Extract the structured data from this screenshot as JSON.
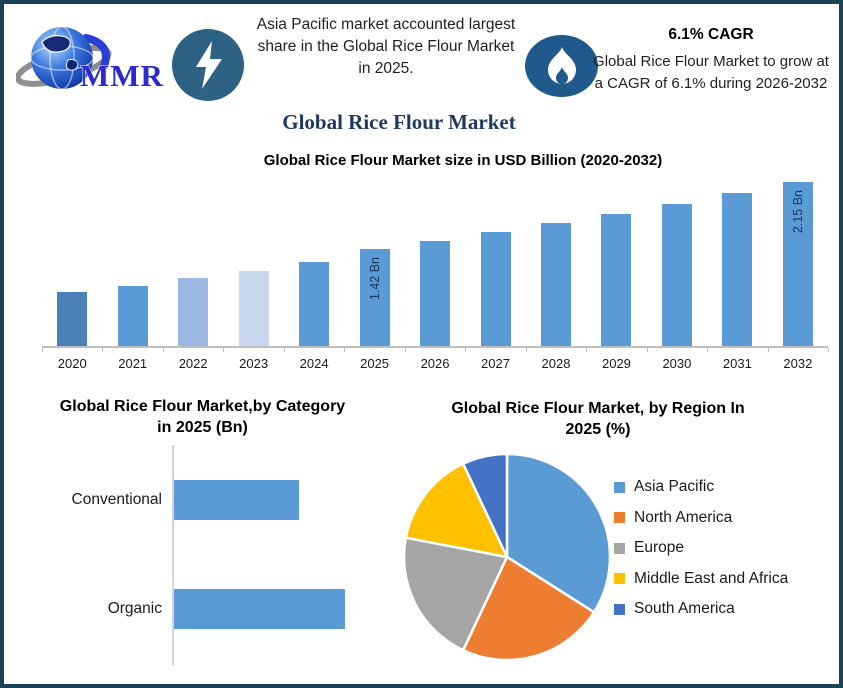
{
  "header": {
    "logo_text": "MMR",
    "highlight_text": "Asia Pacific market accounted largest share in the Global Rice Flour Market in 2025.",
    "cagr_title": "6.1% CAGR",
    "cagr_text": "Global Rice Flour Market to grow at a CAGR of 6.1% during 2026-2032"
  },
  "page_title": "Global Rice Flour Market",
  "colors": {
    "border": "#1c4354",
    "lightning_circle": "#2d6284",
    "flame_circle": "#205a8c",
    "title_navy": "#1f3864",
    "bar_blue": "#5b9bd5",
    "axis_gray": "#bfbfbf"
  },
  "chart_data": [
    {
      "type": "bar",
      "title": "Global Rice Flour Market size in USD Billion (2020-2032)",
      "categories": [
        "2020",
        "2021",
        "2022",
        "2023",
        "2024",
        "2025",
        "2026",
        "2027",
        "2028",
        "2029",
        "2030",
        "2031",
        "2032"
      ],
      "values": [
        0.95,
        1.02,
        1.1,
        1.18,
        1.28,
        1.42,
        1.51,
        1.6,
        1.7,
        1.8,
        1.91,
        2.03,
        2.15
      ],
      "unit": "USD Bn",
      "data_labels": {
        "2025": "1.42 Bn",
        "2032": "2.15 Bn"
      },
      "bar_colors": [
        "#4a82b8",
        "#5b9bd5",
        "#9ab8e0",
        "#c9d7ee",
        "#5b9bd5",
        "#5b9bd5",
        "#5b9bd5",
        "#5b9bd5",
        "#5b9bd5",
        "#5b9bd5",
        "#5b9bd5",
        "#5b9bd5",
        "#5b9bd5"
      ],
      "xlabel": "",
      "ylabel": "",
      "y_axis_hidden": true,
      "grid": false
    },
    {
      "type": "bar",
      "orientation": "horizontal",
      "title": "Global Rice Flour Market,by Category in 2025 (Bn)",
      "title_lines": [
        "Global Rice Flour Market,by Category",
        "in 2025 (Bn)"
      ],
      "categories": [
        "Conventional",
        "Organic"
      ],
      "values": [
        0.6,
        0.82
      ],
      "unit": "Bn",
      "color": "#5b9bd5",
      "grid": false
    },
    {
      "type": "pie",
      "title": "Global Rice Flour Market, by Region In 2025 (%)",
      "title_lines": [
        "Global Rice Flour Market, by Region In",
        "2025 (%)"
      ],
      "labels": [
        "Asia Pacific",
        "North America",
        "Europe",
        "Middle East and Africa",
        "South America"
      ],
      "values": [
        34,
        23,
        21,
        15,
        7
      ],
      "unit": "%",
      "colors": [
        "#5b9bd5",
        "#ed7d31",
        "#a5a5a5",
        "#ffc000",
        "#4472c4"
      ],
      "legend_position": "right",
      "start_angle_clockwise_from_top": 0
    }
  ]
}
